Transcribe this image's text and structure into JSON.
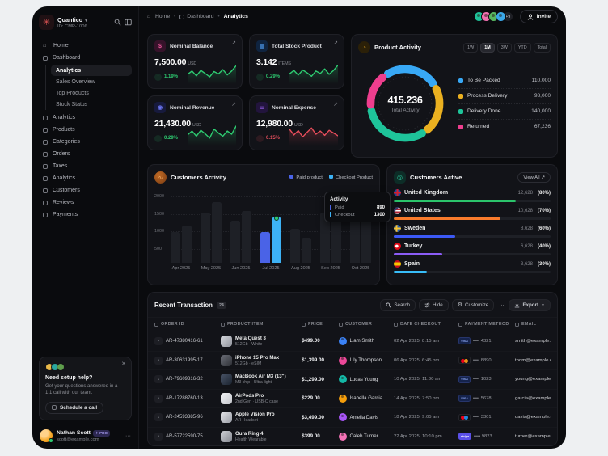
{
  "app": {
    "brand": "Quantico",
    "brand_id": "ID: CMP-1006"
  },
  "breadcrumb": {
    "home": "Home",
    "dashboard": "Dashboard",
    "current": "Analytics"
  },
  "header": {
    "overflow_count": "+9",
    "invite_label": "Invite",
    "avatar_colors": [
      "#1fc198",
      "#ef6fae",
      "#57b560",
      "#3aa7e8"
    ]
  },
  "sidebar": {
    "items_top": [
      {
        "label": "Home"
      },
      {
        "label": "Dashboard"
      }
    ],
    "dashboard_sub": [
      {
        "label": "Analytics"
      },
      {
        "label": "Sales Overview"
      },
      {
        "label": "Top Products"
      },
      {
        "label": "Stock Status"
      }
    ],
    "items_lower": [
      {
        "label": "Analytics"
      },
      {
        "label": "Products"
      },
      {
        "label": "Categories"
      },
      {
        "label": "Orders"
      },
      {
        "label": "Taxes"
      },
      {
        "label": "Analytics"
      },
      {
        "label": "Customers"
      },
      {
        "label": "Reviews"
      },
      {
        "label": "Payments"
      }
    ],
    "help": {
      "title": "Need setup help?",
      "body": "Get your questions answered in a 1:1 call with our team.",
      "cta": "Schedule a call"
    },
    "user": {
      "name": "Nathan Scott",
      "badge": "PRO",
      "email": "scott@example.com"
    }
  },
  "stats": [
    {
      "title": "Nominal Balance",
      "value": "7,500.00",
      "unit": "USD",
      "delta": "1.19%",
      "direction": "up",
      "spark": [
        38,
        55,
        30,
        58,
        42,
        25,
        52,
        40,
        62,
        35,
        55,
        82
      ]
    },
    {
      "title": "Total Stock Product",
      "value": "3.142",
      "unit": "ITEMS",
      "delta": "0.29%",
      "direction": "up",
      "spark": [
        40,
        58,
        34,
        60,
        46,
        28,
        55,
        42,
        66,
        38,
        58,
        85
      ]
    },
    {
      "title": "Nominal Revenue",
      "value": "21,430.00",
      "unit": "USD",
      "delta": "0.29%",
      "direction": "up",
      "spark": [
        42,
        62,
        36,
        66,
        48,
        26,
        72,
        52,
        36,
        62,
        46,
        88
      ]
    },
    {
      "title": "Nominal Expense",
      "value": "12,980.00",
      "unit": "USD",
      "delta": "0.15%",
      "direction": "down",
      "spark": [
        72,
        42,
        64,
        32,
        56,
        78,
        46,
        62,
        40,
        66,
        52,
        38
      ]
    }
  ],
  "product_activity": {
    "title": "Product Activity",
    "ranges": [
      {
        "label": "1W"
      },
      {
        "label": "1M"
      },
      {
        "label": "3W"
      },
      {
        "label": "YTD"
      },
      {
        "label": "Total"
      }
    ],
    "active_range": "1M",
    "center_value": "415.236",
    "center_label": "Total Activity",
    "legend": [
      {
        "label": "To Be Packed",
        "value": "110,000",
        "color": "#38a8f5"
      },
      {
        "label": "Process Delivery",
        "value": "98,000",
        "color": "#eab020"
      },
      {
        "label": "Delivery Done",
        "value": "140,000",
        "color": "#1ec49a"
      },
      {
        "label": "Returned",
        "value": "67,236",
        "color": "#ee3e8e"
      }
    ]
  },
  "customers_activity": {
    "title": "Customers Activity",
    "legend": [
      {
        "label": "Paid product",
        "color": "#4a63e7"
      },
      {
        "label": "Checkout Product",
        "color": "#3db2f5"
      }
    ],
    "y_ticks": [
      2000,
      1500,
      1000,
      500
    ],
    "y_max": 2000,
    "months": [
      "Apr 2025",
      "May 2025",
      "Jun 2025",
      "Jul 2025",
      "Aug 2025",
      "Sep 2025",
      "Oct 2025"
    ],
    "paid": [
      880,
      1450,
      1210,
      890,
      980,
      1440,
      1790
    ],
    "checkout": [
      1060,
      1740,
      1500,
      1300,
      730,
      1280,
      1570
    ],
    "highlight_index": 3,
    "tooltip": {
      "title": "Activity",
      "rows": [
        {
          "label": "Paid",
          "value": "890"
        },
        {
          "label": "Checkout",
          "value": "1300"
        }
      ]
    }
  },
  "customers_active": {
    "title": "Customers Active",
    "action": "View All ↗",
    "rows": [
      {
        "country": "United Kingdom",
        "value": "12,628",
        "percent": "(80%)",
        "bar_pct": 78,
        "color": "#2bc46b"
      },
      {
        "country": "United States",
        "value": "10,628",
        "percent": "(70%)",
        "bar_pct": 68,
        "color": "#f97b2c"
      },
      {
        "country": "Sweden",
        "value": "8,628",
        "percent": "(60%)",
        "bar_pct": 39,
        "color": "#3c59f5"
      },
      {
        "country": "Turkey",
        "value": "6,628",
        "percent": "(40%)",
        "bar_pct": 31,
        "color": "#8b5cf6"
      },
      {
        "country": "Spain",
        "value": "3,628",
        "percent": "(30%)",
        "bar_pct": 21,
        "color": "#38bdf8"
      }
    ]
  },
  "transactions": {
    "title": "Recent Transaction",
    "count": "24",
    "toolbar": {
      "search": "Search",
      "hide": "Hide",
      "customize": "Customize",
      "more": "···",
      "export": "Export"
    },
    "columns": [
      "ORDER ID",
      "PRODUCT ITEM",
      "PRICE",
      "CUSTOMER",
      "DATE CHECKOUT",
      "PAYMENT METHOD",
      "EMAIL"
    ],
    "rows": [
      {
        "order_id": "AR-47380416-61",
        "product": "Meta Quest 3",
        "product_sub": "512Gb · White",
        "price": "$499.00",
        "customer": "Liam Smith",
        "avatar_color": "#3b82f6",
        "date": "02 Apr 2025, 8:15 am",
        "payment": "VISA",
        "card": "•••• 4321",
        "email": "smith@example.com",
        "thumb": [
          "#d8dadf",
          "#8f929b"
        ]
      },
      {
        "order_id": "AR-30631995-17",
        "product": "iPhone 15 Pro Max",
        "product_sub": "512Gb · eSIM",
        "price": "$1,399.00",
        "customer": "Lily Thompson",
        "avatar_color": "#ec4899",
        "date": "06 Apr 2025, 6:45 pm",
        "payment": "mastercard",
        "card": "•••• 8890",
        "email": "thom@example.com",
        "thumb": [
          "#6b6e77",
          "#2e3036"
        ]
      },
      {
        "order_id": "AR-79609316-32",
        "product": "MacBook Air M3 (13\")",
        "product_sub": "M3 chip · Ultra-light",
        "price": "$1,299.00",
        "customer": "Lucas Young",
        "avatar_color": "#14b8a6",
        "date": "10 Apr 2025, 11:30 am",
        "payment": "VISA",
        "card": "•••• 1023",
        "email": "young@example.com",
        "thumb": [
          "#4a5568",
          "#1b2330"
        ]
      },
      {
        "order_id": "AR-17288760-13",
        "product": "AirPods Pro",
        "product_sub": "2nd Gen · USB-C case",
        "price": "$229.00",
        "customer": "Isabella Garcia",
        "avatar_color": "#f59e0b",
        "date": "14 Apr 2025, 7:50 pm",
        "payment": "VISA",
        "card": "•••• 5678",
        "email": "garcia@example.com",
        "thumb": [
          "#f2f3f5",
          "#c4c6cc"
        ]
      },
      {
        "order_id": "AR-24593385-96",
        "product": "Apple Vision Pro",
        "product_sub": "AR Headset",
        "price": "$3,499.00",
        "customer": "Amelia Davis",
        "avatar_color": "#a855f7",
        "date": "18 Apr 2025, 9:05 am",
        "payment": "maestro",
        "card": "•••• 3301",
        "email": "davis@example.com",
        "thumb": [
          "#e6e7ea",
          "#9a9da6"
        ]
      },
      {
        "order_id": "AR-57722590-75",
        "product": "Oura Ring 4",
        "product_sub": "Health Wearable",
        "price": "$399.00",
        "customer": "Caleb Turner",
        "avatar_color": "#f472b6",
        "date": "22 Apr 2025, 10:10 pm",
        "payment": "stripe",
        "card": "•••• 9823",
        "email": "turner@example.com",
        "thumb": [
          "#cfd1d6",
          "#84878f"
        ]
      }
    ]
  }
}
